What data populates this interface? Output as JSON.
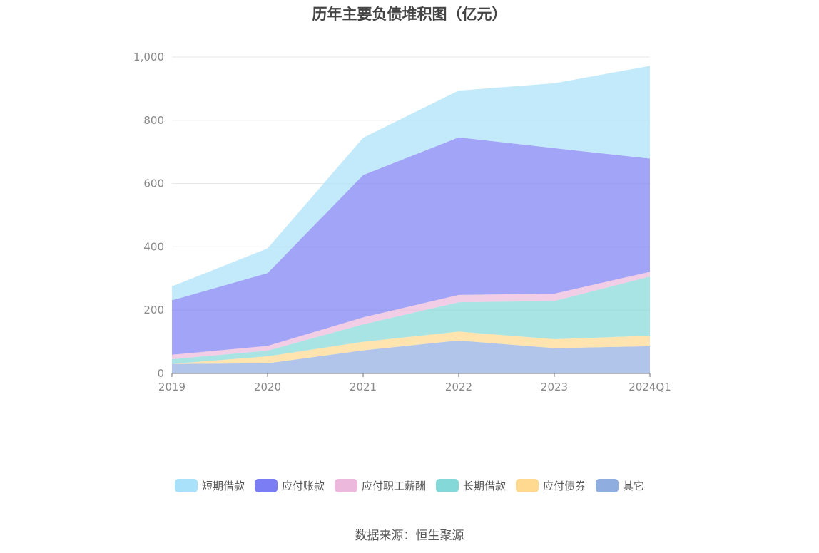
{
  "chart_data": {
    "type": "area",
    "stacked": true,
    "title": "历年主要负债堆积图（亿元）",
    "categories": [
      "2019",
      "2020",
      "2021",
      "2022",
      "2023",
      "2024Q1"
    ],
    "y_ticks": [
      "0",
      "200",
      "400",
      "600",
      "800",
      "1,000"
    ],
    "ylim": [
      0,
      1000
    ],
    "grid": true,
    "legend_position": "bottom",
    "series": [
      {
        "name": "其它",
        "color": "#8faddf",
        "values": [
          30,
          32,
          73,
          104,
          80,
          86
        ]
      },
      {
        "name": "应付债券",
        "color": "#ffd98f",
        "values": [
          0,
          22,
          27,
          28,
          28,
          33
        ]
      },
      {
        "name": "长期借款",
        "color": "#85d8d8",
        "values": [
          15,
          18,
          55,
          93,
          121,
          187
        ]
      },
      {
        "name": "应付职工薪酬",
        "color": "#ecb8dc",
        "values": [
          14,
          15,
          22,
          23,
          23,
          15
        ]
      },
      {
        "name": "应付账款",
        "color": "#7b7df5",
        "values": [
          172,
          230,
          450,
          498,
          460,
          358
        ]
      },
      {
        "name": "短期借款",
        "color": "#a9e1fa",
        "values": [
          44,
          78,
          118,
          148,
          205,
          293
        ]
      }
    ]
  },
  "legend": [
    "短期借款",
    "应付账款",
    "应付职工薪酬",
    "长期借款",
    "应付债券",
    "其它"
  ],
  "source": "数据来源：恒生聚源"
}
